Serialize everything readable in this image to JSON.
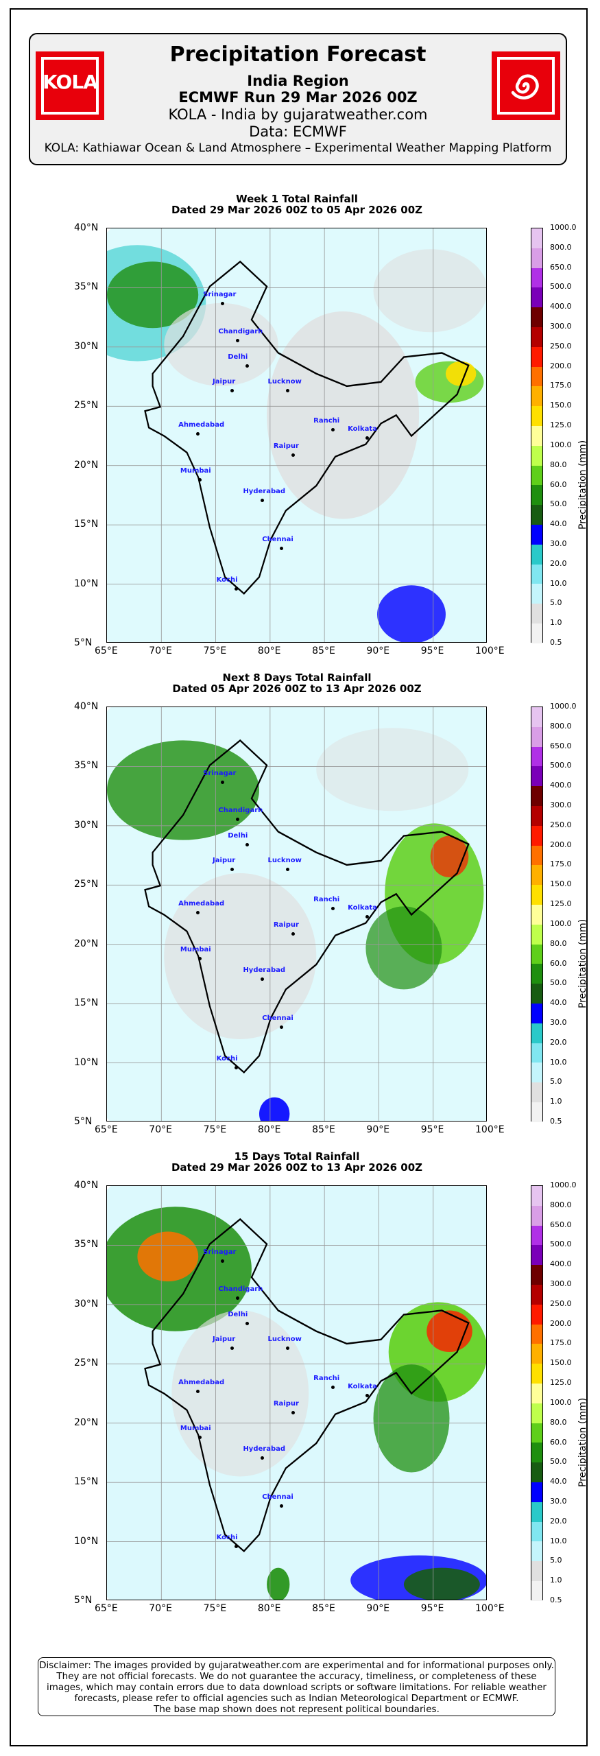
{
  "header": {
    "title": "Precipitation Forecast",
    "region": "India Region",
    "run": "ECMWF Run 29 Mar 2026 00Z",
    "brand": "KOLA - India by gujaratweather.com",
    "data_source": "Data: ECMWF",
    "platform": "KOLA: Kathiawar Ocean & Land Atmosphere – Experimental Weather Mapping Platform",
    "logo_left_text": "KOLA",
    "logo_right_icon": "spiral-icon"
  },
  "panels": [
    {
      "title": "Week 1 Total Rainfall",
      "dates": "Dated 29 Mar 2026 00Z to 05 Apr 2026 00Z"
    },
    {
      "title": "Next 8 Days Total Rainfall",
      "dates": "Dated 05 Apr 2026 00Z to 13 Apr 2026 00Z"
    },
    {
      "title": "15 Days Total Rainfall",
      "dates": "Dated 29 Mar 2026 00Z to 13 Apr 2026 00Z"
    }
  ],
  "axes": {
    "lat_labels": [
      "40°N",
      "35°N",
      "30°N",
      "25°N",
      "20°N",
      "15°N",
      "10°N",
      "5°N"
    ],
    "lon_labels": [
      "65°E",
      "70°E",
      "75°E",
      "80°E",
      "85°E",
      "90°E",
      "95°E",
      "100°E"
    ]
  },
  "cities": [
    "Srinagar",
    "Chandigarh",
    "Delhi",
    "Jaipur",
    "Lucknow",
    "Ahmedabad",
    "Ranchi",
    "Kolkata",
    "Raipur",
    "Mumbai",
    "Hyderabad",
    "Chennai",
    "Kochi"
  ],
  "colorbar": {
    "title": "Precipitation (mm)",
    "levels": [
      "1000.0",
      "800.0",
      "650.0",
      "500.0",
      "400.0",
      "300.0",
      "250.0",
      "200.0",
      "175.0",
      "150.0",
      "125.0",
      "100.0",
      "80.0",
      "60.0",
      "50.0",
      "40.0",
      "30.0",
      "20.0",
      "10.0",
      "5.0",
      "1.0",
      "0.5"
    ],
    "colors": [
      "#e6c4f0",
      "#d99ee6",
      "#b030e6",
      "#7a00b8",
      "#6e0000",
      "#b40000",
      "#ff1a00",
      "#ff7000",
      "#ffb000",
      "#ffe000",
      "#ffff99",
      "#bfff4c",
      "#5fcf1a",
      "#1f8f0f",
      "#185c12",
      "#0000ff",
      "#2ac9c9",
      "#80e6f0",
      "#c4f5fc",
      "#e0e0e0",
      "#f2f2f2"
    ]
  },
  "disclaimer": [
    "Disclaimer: The images provided by gujaratweather.com are experimental and for informational purposes only.",
    "They are not official forecasts. We do not guarantee the accuracy, timeliness, or completeness of these",
    "images, which may contain errors due to data download scripts or software limitations. For reliable weather",
    "forecasts, please refer to official agencies such as Indian Meteorological Department or ECMWF.",
    "The base map shown does not represent political boundaries."
  ]
}
